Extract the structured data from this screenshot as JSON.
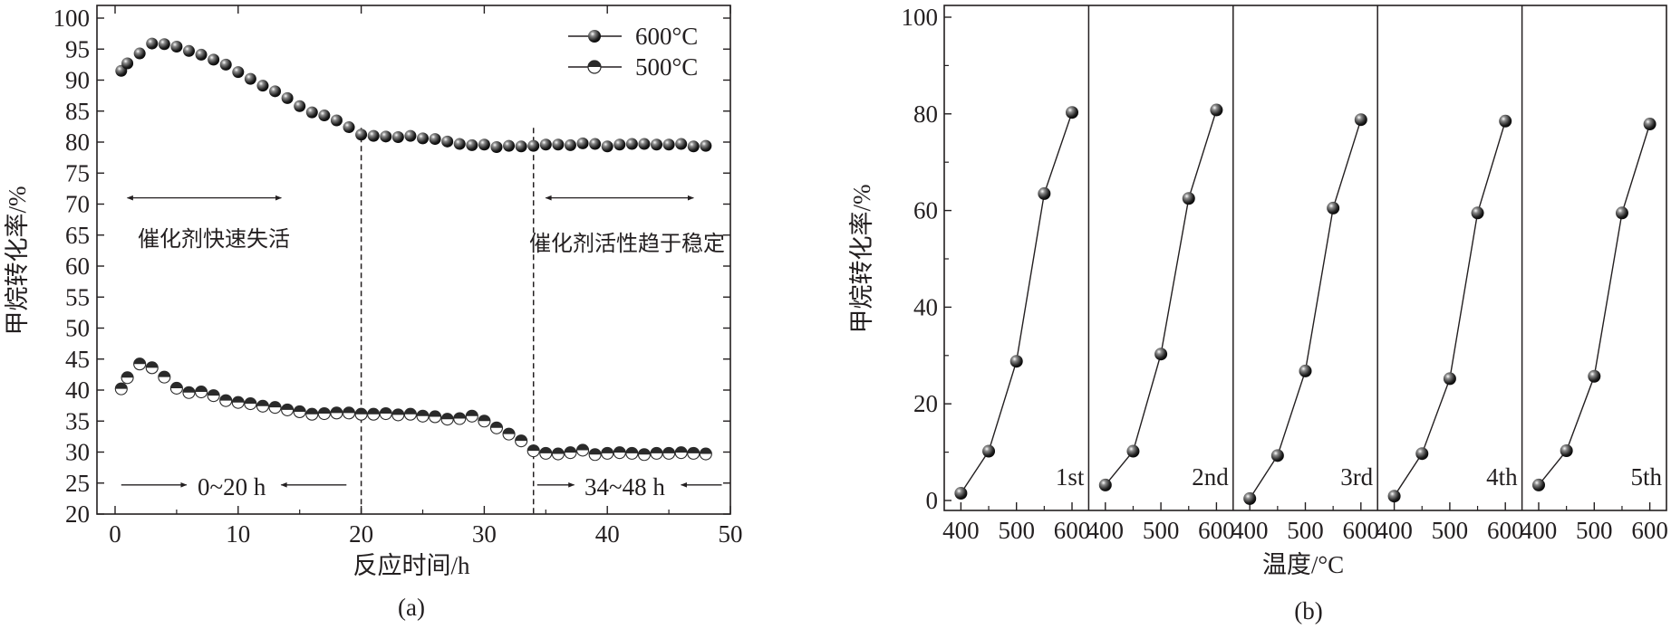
{
  "colors": {
    "ink": "#231f20",
    "marker_600": "#2a2a2a",
    "marker_500_top": "#2a2a2a",
    "marker_500_bottom": "#ffffff"
  },
  "chart_data": [
    {
      "id": "a",
      "type": "scatter",
      "caption": "(a)",
      "xlabel": "反应时间/h",
      "ylabel": "甲烷转化率/%",
      "xlim": [
        0,
        50
      ],
      "ylim": [
        20,
        100
      ],
      "x_ticks": [
        0,
        10,
        20,
        30,
        40,
        50
      ],
      "y_ticks": [
        20,
        25,
        30,
        35,
        40,
        45,
        50,
        55,
        60,
        65,
        70,
        75,
        80,
        85,
        90,
        95,
        100
      ],
      "grid": false,
      "legend_position": "top-right",
      "series": [
        {
          "name": "600°C",
          "marker": "filled-circle",
          "x": [
            0.5,
            1.0,
            2.0,
            3.0,
            4.0,
            5.0,
            6.0,
            7.0,
            8.0,
            9.0,
            10.0,
            11.0,
            12.0,
            13.0,
            14.0,
            15.0,
            16.0,
            17.0,
            18.0,
            19.0,
            20.0,
            21.0,
            22.0,
            23.0,
            24.0,
            25.0,
            26.0,
            27.0,
            28.0,
            29.0,
            30.0,
            31.0,
            32.0,
            33.0,
            34.0,
            35.0,
            36.0,
            37.0,
            38.0,
            39.0,
            40.0,
            41.0,
            42.0,
            43.0,
            44.0,
            45.0,
            46.0,
            47.0,
            48.0
          ],
          "y": [
            91.5,
            92.7,
            94.3,
            95.9,
            95.8,
            95.4,
            94.7,
            94.1,
            93.3,
            92.5,
            91.3,
            90.2,
            89.1,
            88.2,
            87.1,
            85.8,
            84.8,
            84.3,
            83.5,
            82.4,
            81.2,
            81.0,
            80.9,
            80.8,
            81.0,
            80.6,
            80.5,
            80.1,
            79.7,
            79.5,
            79.6,
            79.2,
            79.4,
            79.3,
            79.4,
            79.6,
            79.6,
            79.5,
            79.8,
            79.7,
            79.3,
            79.6,
            79.7,
            79.7,
            79.6,
            79.6,
            79.7,
            79.3,
            79.4
          ]
        },
        {
          "name": "500°C",
          "marker": "half-filled-circle",
          "x": [
            0.5,
            1.0,
            2.0,
            3.0,
            4.0,
            5.0,
            6.0,
            7.0,
            8.0,
            9.0,
            10.0,
            11.0,
            12.0,
            13.0,
            14.0,
            15.0,
            16.0,
            17.0,
            18.0,
            19.0,
            20.0,
            21.0,
            22.0,
            23.0,
            24.0,
            25.0,
            26.0,
            27.0,
            28.0,
            29.0,
            30.0,
            31.0,
            32.0,
            33.0,
            34.0,
            35.0,
            36.0,
            37.0,
            38.0,
            39.0,
            40.0,
            41.0,
            42.0,
            43.0,
            44.0,
            45.0,
            46.0,
            47.0,
            48.0
          ],
          "y": [
            40.2,
            42.0,
            44.2,
            43.6,
            42.1,
            40.3,
            39.6,
            39.7,
            39.1,
            38.3,
            38.0,
            37.8,
            37.4,
            37.2,
            36.8,
            36.5,
            36.1,
            36.2,
            36.3,
            36.3,
            36.1,
            36.1,
            36.2,
            36.0,
            36.1,
            35.8,
            35.7,
            35.3,
            35.4,
            35.8,
            35.0,
            33.9,
            32.9,
            31.8,
            30.2,
            29.8,
            29.7,
            29.9,
            30.3,
            29.6,
            29.8,
            29.9,
            29.8,
            29.6,
            29.8,
            29.8,
            29.9,
            29.8,
            29.7
          ]
        }
      ],
      "vlines": [
        20,
        34
      ],
      "annotations": [
        {
          "text": "催化剂快速失活",
          "x": 1.5,
          "y": 64.5
        },
        {
          "text": "催化剂活性趋于稳定",
          "x": 33.6,
          "y": 64.0
        },
        {
          "text": "0~20 h",
          "x": 9.6,
          "y": 25.0
        },
        {
          "text": "34~48 h",
          "x": 41.6,
          "y": 25.0
        }
      ],
      "arrows": [
        {
          "kind": "double",
          "x1": 1.0,
          "x2": 13.5,
          "y": 71.0
        },
        {
          "kind": "double",
          "x1": 35.0,
          "x2": 47.0,
          "y": 71.0
        },
        {
          "kind": "single",
          "x1": 0.5,
          "x2": 5.8,
          "y": 24.7
        },
        {
          "kind": "single",
          "x1": 18.8,
          "x2": 13.5,
          "y": 24.7
        },
        {
          "kind": "single",
          "x1": 34.3,
          "x2": 37.3,
          "y": 24.7
        },
        {
          "kind": "single",
          "x1": 49.3,
          "x2": 46.0,
          "y": 24.7
        }
      ]
    },
    {
      "id": "b",
      "type": "line",
      "caption": "(b)",
      "xlabel": "温度/°C",
      "ylabel": "甲烷转化率/%",
      "ylim": [
        -2,
        101
      ],
      "y_ticks": [
        0,
        20,
        40,
        60,
        80,
        100
      ],
      "panel_xlim": [
        370,
        630
      ],
      "x_ticks": [
        400,
        500,
        600
      ],
      "x_minor_ticks": [
        450,
        550
      ],
      "x_tick_labels": [
        [
          "400",
          "500",
          "600"
        ],
        [
          "400",
          "500",
          "600"
        ],
        [
          "400",
          "500",
          "600"
        ],
        [
          "400",
          "500",
          "600"
        ],
        [
          "400",
          "500",
          "600"
        ]
      ],
      "grid": false,
      "x": [
        400,
        450,
        500,
        550,
        600
      ],
      "series": [
        {
          "name": "1st",
          "values": [
            1.5,
            10.2,
            28.8,
            63.5,
            80.3
          ]
        },
        {
          "name": "2nd",
          "values": [
            3.2,
            10.2,
            30.3,
            62.5,
            80.8
          ]
        },
        {
          "name": "3rd",
          "values": [
            0.4,
            9.3,
            26.8,
            60.5,
            78.8
          ]
        },
        {
          "name": "4th",
          "values": [
            0.9,
            9.7,
            25.2,
            59.5,
            78.5
          ]
        },
        {
          "name": "5th",
          "values": [
            3.2,
            10.3,
            25.7,
            59.5,
            77.9
          ]
        }
      ]
    }
  ]
}
